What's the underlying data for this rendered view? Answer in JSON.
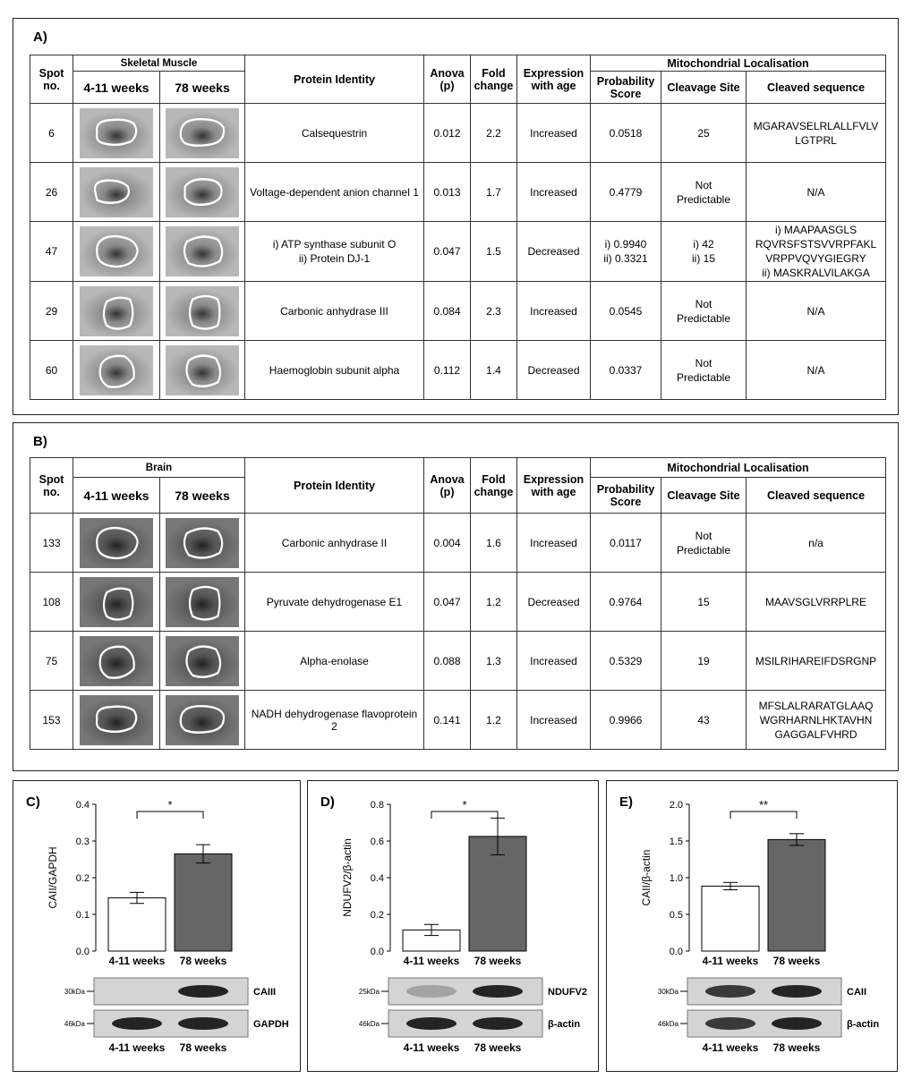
{
  "tables": [
    {
      "label": "A)",
      "group": "Skeletal Muscle",
      "headers": {
        "spot": "Spot no.",
        "age1": "4-11 weeks",
        "age2": "78 weeks",
        "protein": "Protein Identity",
        "anova": "Anova (p)",
        "fold": "Fold change",
        "expression": "Expression with age",
        "mito": "Mitochondrial Localisation",
        "probability": "Probability Score",
        "cleavage": "Cleavage Site",
        "sequence": "Cleaved sequence"
      },
      "rows": [
        [
          "6",
          "Calsequestrin",
          "0.012",
          "2.2",
          "Increased",
          "0.0518",
          "25",
          [
            "MGARAVSELRLALLFVLV",
            "LGTPRL"
          ]
        ],
        [
          "26",
          "Voltage-dependent anion channel 1",
          "0.013",
          "1.7",
          "Increased",
          "0.4779",
          [
            "Not",
            "Predictable"
          ],
          "N/A"
        ],
        [
          "47",
          [
            "i) ATP synthase subunit O",
            "ii) Protein DJ-1"
          ],
          "0.047",
          "1.5",
          "Decreased",
          [
            "i) 0.9940",
            "ii) 0.3321"
          ],
          [
            "i) 42",
            "ii) 15"
          ],
          [
            "i) MAAPAASGLS",
            "RQVRSFSTSVVRPFAKL",
            "VRPPVQVYGIEGRY",
            "ii) MASKRALVILAKGA"
          ]
        ],
        [
          "29",
          "Carbonic anhydrase III",
          "0.084",
          "2.3",
          "Increased",
          "0.0545",
          [
            "Not",
            "Predictable"
          ],
          "N/A"
        ],
        [
          "60",
          "Haemoglobin subunit alpha",
          "0.112",
          "1.4",
          "Decreased",
          "0.0337",
          [
            "Not",
            "Predictable"
          ],
          "N/A"
        ]
      ]
    },
    {
      "label": "B)",
      "group": "Brain",
      "headers": {
        "spot": "Spot no.",
        "age1": "4-11 weeks",
        "age2": "78 weeks",
        "protein": "Protein Identity",
        "anova": "Anova (p)",
        "fold": "Fold change",
        "expression": "Expression with age",
        "mito": "Mitochondrial Localisation",
        "probability": "Probability Score",
        "cleavage": "Cleavage Site",
        "sequence": "Cleaved sequence"
      },
      "rows": [
        [
          "133",
          "Carbonic anhydrase II",
          "0.004",
          "1.6",
          "Increased",
          "0.0117",
          [
            "Not",
            "Predictable"
          ],
          "n/a"
        ],
        [
          "108",
          "Pyruvate dehydrogenase E1",
          "0.047",
          "1.2",
          "Decreased",
          "0.9764",
          "15",
          "MAAVSGLVRRPLRE"
        ],
        [
          "75",
          "Alpha-enolase",
          "0.088",
          "1.3",
          "Increased",
          "0.5329",
          "19",
          "MSILRIHAREIFDSRGNP"
        ],
        [
          "153",
          "NADH dehydrogenase flavoprotein 2",
          "0.141",
          "1.2",
          "Increased",
          "0.9966",
          "43",
          [
            "MFSLALRARATGLAAQ",
            "WGRHARNLHKTAVHN",
            "GAGGALFVHRD"
          ]
        ]
      ]
    }
  ],
  "chart_data": [
    {
      "type": "bar",
      "label": "C)",
      "y_label": "CAII/GAPDH",
      "categories": [
        "4-11 weeks",
        "78 weeks"
      ],
      "values": [
        0.145,
        0.265
      ],
      "errors": [
        0.015,
        0.025
      ],
      "colors": [
        "#ffffff",
        "#666666"
      ],
      "ylim": [
        0,
        0.4
      ],
      "yticks": [
        {
          "value": 0,
          "label": "0.0"
        },
        0.1,
        0.2,
        0.3,
        0.4
      ],
      "significance": "*",
      "blots": [
        {
          "marker": "30kDa",
          "label": "CAIII"
        },
        {
          "marker": "46kDa",
          "label": "GAPDH"
        }
      ]
    },
    {
      "type": "bar",
      "label": "D)",
      "y_label": "NDUFV2/β-actin",
      "categories": [
        "4-11 weeks",
        "78 weeks"
      ],
      "values": [
        0.115,
        0.625
      ],
      "errors": [
        0.03,
        0.1
      ],
      "colors": [
        "#ffffff",
        "#666666"
      ],
      "ylim": [
        0,
        0.8
      ],
      "yticks": [
        {
          "value": 0,
          "label": "0.0"
        },
        0.2,
        0.4,
        0.6,
        0.8
      ],
      "significance": "*",
      "blots": [
        {
          "marker": "25kDa",
          "label": "NDUFV2"
        },
        {
          "marker": "46kDa",
          "label": "β-actin"
        }
      ]
    },
    {
      "type": "bar",
      "label": "E)",
      "y_label": "CAII/β-actin",
      "categories": [
        "4-11 weeks",
        "78 weeks"
      ],
      "values": [
        0.885,
        1.52
      ],
      "errors": [
        0.05,
        0.08
      ],
      "colors": [
        "#ffffff",
        "#666666"
      ],
      "ylim": [
        0,
        2
      ],
      "yticks": [
        {
          "value": 0,
          "label": "0.0"
        },
        0.5,
        {
          "value": 1,
          "label": "1.0"
        },
        1.5,
        {
          "value": 2,
          "label": "2.0"
        }
      ],
      "significance": "**",
      "blots": [
        {
          "marker": "30kDa",
          "label": "CAII"
        },
        {
          "marker": "46kDa",
          "label": "β-actin"
        }
      ]
    }
  ]
}
